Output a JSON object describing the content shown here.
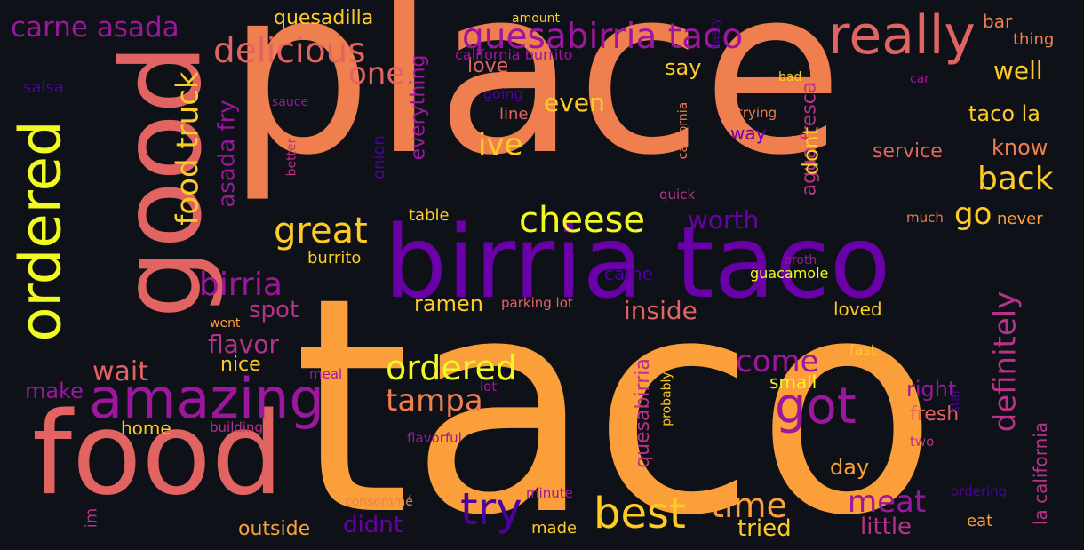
{
  "palette": {
    "background": "#0e1117",
    "orange": "#fb9f3a",
    "coral": "#f07f4f",
    "salmon": "#e16462",
    "pink": "#b83289",
    "magenta": "#9c179e",
    "purple": "#6a00a8",
    "indigo": "#4c02a1",
    "yellow": "#f0f921",
    "gold": "#fdca26"
  },
  "words": [
    {
      "text": "taco"
    },
    {
      "text": "place"
    },
    {
      "text": "birria taco"
    },
    {
      "text": "food"
    },
    {
      "text": "good"
    },
    {
      "text": "ordered"
    },
    {
      "text": "amazing"
    },
    {
      "text": "quesabirria taco"
    },
    {
      "text": "really"
    },
    {
      "text": "delicious"
    },
    {
      "text": "carne asada"
    },
    {
      "text": "best"
    },
    {
      "text": "try"
    },
    {
      "text": "got"
    },
    {
      "text": "ordered"
    },
    {
      "text": "cheese"
    },
    {
      "text": "great"
    },
    {
      "text": "time"
    },
    {
      "text": "birria"
    },
    {
      "text": "tampa"
    },
    {
      "text": "food truck"
    },
    {
      "text": "definitely"
    },
    {
      "text": "back"
    },
    {
      "text": "meat"
    },
    {
      "text": "come"
    },
    {
      "text": "one"
    },
    {
      "text": "ive"
    },
    {
      "text": "go"
    },
    {
      "text": "worth"
    },
    {
      "text": "asada fry"
    },
    {
      "text": "agua fresca"
    },
    {
      "text": "la california"
    },
    {
      "text": "quesabirria"
    },
    {
      "text": "flavor"
    },
    {
      "text": "wait"
    },
    {
      "text": "inside"
    },
    {
      "text": "even"
    },
    {
      "text": "well"
    },
    {
      "text": "taco la"
    },
    {
      "text": "everything"
    },
    {
      "text": "little"
    },
    {
      "text": "spot"
    },
    {
      "text": "ramen"
    },
    {
      "text": "didnt"
    },
    {
      "text": "tried"
    },
    {
      "text": "quesadilla"
    },
    {
      "text": "say"
    },
    {
      "text": "dont"
    },
    {
      "text": "know"
    },
    {
      "text": "service"
    },
    {
      "text": "make"
    },
    {
      "text": "right"
    },
    {
      "text": "fresh"
    },
    {
      "text": "day"
    },
    {
      "text": "outside"
    },
    {
      "text": "love"
    },
    {
      "text": "loved"
    },
    {
      "text": "small"
    },
    {
      "text": "nice"
    },
    {
      "text": "home"
    },
    {
      "text": "came"
    },
    {
      "text": "way"
    },
    {
      "text": "line"
    },
    {
      "text": "onion"
    },
    {
      "text": "bar"
    },
    {
      "text": "thing"
    },
    {
      "text": "salsa"
    },
    {
      "text": "going"
    },
    {
      "text": "table"
    },
    {
      "text": "burrito"
    },
    {
      "text": "never"
    },
    {
      "text": "eat"
    },
    {
      "text": "made"
    },
    {
      "text": "im"
    },
    {
      "text": "california burrito"
    },
    {
      "text": "amount"
    },
    {
      "text": "tasty"
    },
    {
      "text": "bad"
    },
    {
      "text": "car"
    },
    {
      "text": "trying"
    },
    {
      "text": "sauce"
    },
    {
      "text": "better"
    },
    {
      "text": "california"
    },
    {
      "text": "quick"
    },
    {
      "text": "much"
    },
    {
      "text": "guacamole"
    },
    {
      "text": "broth"
    },
    {
      "text": "parking lot"
    },
    {
      "text": "went"
    },
    {
      "text": "meal"
    },
    {
      "text": "lot"
    },
    {
      "text": "fast"
    },
    {
      "text": "probably"
    },
    {
      "text": "star"
    },
    {
      "text": "building"
    },
    {
      "text": "flavorful"
    },
    {
      "text": "two"
    },
    {
      "text": "ordering"
    },
    {
      "text": "consommé"
    },
    {
      "text": "minute"
    }
  ]
}
